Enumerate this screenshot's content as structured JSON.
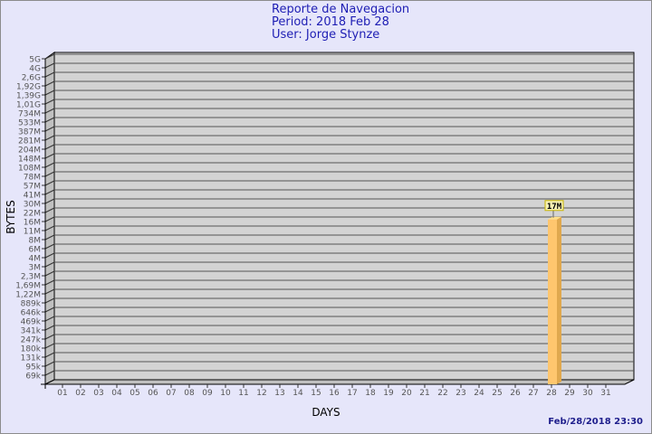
{
  "header": {
    "title": "Reporte de Navegacion",
    "period": "Period: 2018 Feb 28",
    "user": "User: Jorge Stynze"
  },
  "footer": {
    "timestamp": "Feb/28/2018 23:30"
  },
  "colors": {
    "background": "#e6e6fa",
    "plot": "#d3d3d3",
    "bar": "#ffc66e",
    "bar_side": "#e0a84e",
    "title": "#1e1eb4"
  },
  "chart_data": {
    "type": "bar",
    "title": "Reporte de Navegacion",
    "xlabel": "DAYS",
    "ylabel": "BYTES",
    "yscale": "log",
    "ylim": [
      69000,
      5000000000
    ],
    "grid": true,
    "yticks": [
      "5G",
      "4G",
      "2,6G",
      "1,92G",
      "1,39G",
      "1,01G",
      "734M",
      "533M",
      "387M",
      "281M",
      "204M",
      "148M",
      "108M",
      "78M",
      "57M",
      "41M",
      "30M",
      "22M",
      "16M",
      "11M",
      "8M",
      "6M",
      "4M",
      "3M",
      "2,3M",
      "1,69M",
      "1,22M",
      "889k",
      "646k",
      "469k",
      "341k",
      "247k",
      "180k",
      "131k",
      "95k",
      "69k"
    ],
    "categories": [
      "01",
      "02",
      "03",
      "04",
      "05",
      "06",
      "07",
      "08",
      "09",
      "10",
      "11",
      "12",
      "13",
      "14",
      "15",
      "16",
      "17",
      "18",
      "19",
      "20",
      "21",
      "22",
      "23",
      "24",
      "25",
      "26",
      "27",
      "28",
      "29",
      "30",
      "31"
    ],
    "values": [
      0,
      0,
      0,
      0,
      0,
      0,
      0,
      0,
      0,
      0,
      0,
      0,
      0,
      0,
      0,
      0,
      0,
      0,
      0,
      0,
      0,
      0,
      0,
      0,
      0,
      0,
      0,
      17000000,
      0,
      0,
      0
    ],
    "data_labels": {
      "28": "17M"
    }
  }
}
